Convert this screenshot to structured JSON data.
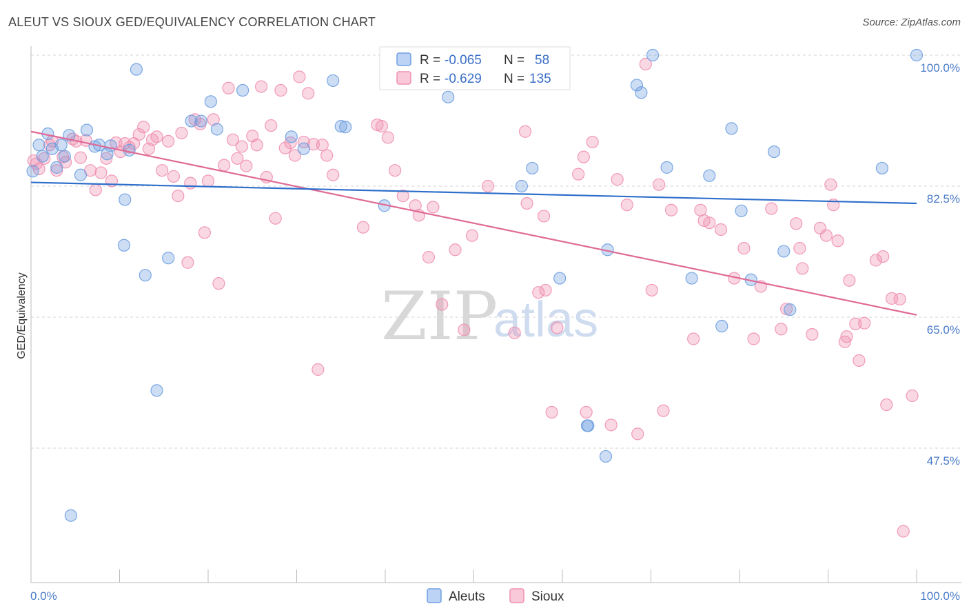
{
  "title": "ALEUT VS SIOUX GED/EQUIVALENCY CORRELATION CHART",
  "source": "Source: ZipAtlas.com",
  "watermark": {
    "zip": "ZIP",
    "atlas": "atlas"
  },
  "colors": {
    "aleut": "#6e9fe0",
    "aleut_line": "#2d6ecb",
    "sioux": "#ef8fb0",
    "sioux_line": "#e06a96",
    "axis_label": "#4a7bc8"
  },
  "legend": {
    "r_label": "R =",
    "n_label": "N =",
    "rows": [
      {
        "r": "-0.065",
        "n": "58"
      },
      {
        "r": "-0.629",
        "n": "135"
      }
    ]
  },
  "chart_data": {
    "type": "scatter",
    "xlabel": "",
    "ylabel": "GED/Equivalency",
    "xlim": [
      0,
      100
    ],
    "ylim": [
      32,
      103
    ],
    "x_tick_labels": [
      "0.0%",
      "100.0%"
    ],
    "y_ticks": [
      47.5,
      65.0,
      82.5,
      100.0
    ],
    "y_tick_labels": [
      "47.5%",
      "65.0%",
      "82.5%",
      "100.0%"
    ],
    "legend_position": "top-center",
    "series": [
      {
        "name": "Aleuts",
        "trend": [
          [
            0,
            83.0
          ],
          [
            100,
            80.2
          ]
        ],
        "points": [
          [
            0.2,
            84.5
          ],
          [
            0.9,
            88
          ],
          [
            1.3,
            86.5
          ],
          [
            1.9,
            89.5
          ],
          [
            2.4,
            87.5
          ],
          [
            2.9,
            85
          ],
          [
            3.4,
            88
          ],
          [
            3.8,
            86.5
          ],
          [
            4.3,
            89.3
          ],
          [
            5.6,
            84
          ],
          [
            6.3,
            90
          ],
          [
            7.2,
            87.8
          ],
          [
            7.7,
            88
          ],
          [
            8.6,
            86.8
          ],
          [
            9,
            87.9
          ],
          [
            10.6,
            80.7
          ],
          [
            10.5,
            74.6
          ],
          [
            11.1,
            87.3
          ],
          [
            11.9,
            98.1
          ],
          [
            12.9,
            70.6
          ],
          [
            14.2,
            55.2
          ],
          [
            15.5,
            72.9
          ],
          [
            18.1,
            91.2
          ],
          [
            19.2,
            91.2
          ],
          [
            20.3,
            93.8
          ],
          [
            21,
            90.1
          ],
          [
            23.9,
            95.3
          ],
          [
            29.4,
            89.1
          ],
          [
            30.8,
            87.5
          ],
          [
            34.1,
            96.6
          ],
          [
            35,
            90.5
          ],
          [
            39.9,
            79.9
          ],
          [
            35.5,
            90.4
          ],
          [
            47.1,
            94.4
          ],
          [
            55.4,
            82.5
          ],
          [
            55.8,
            100
          ],
          [
            56.6,
            84.9
          ],
          [
            59.7,
            70.2
          ],
          [
            62.8,
            50.5
          ],
          [
            62.9,
            50.5
          ],
          [
            64.9,
            46.4
          ],
          [
            65.1,
            74
          ],
          [
            68.4,
            96
          ],
          [
            70.2,
            100
          ],
          [
            68.9,
            95
          ],
          [
            71.8,
            85
          ],
          [
            74.6,
            70.2
          ],
          [
            76.6,
            83.9
          ],
          [
            78,
            63.8
          ],
          [
            79.1,
            90.2
          ],
          [
            80.2,
            79.2
          ],
          [
            81.3,
            70
          ],
          [
            83.9,
            87.1
          ],
          [
            85.7,
            66
          ],
          [
            85,
            73.8
          ],
          [
            96.1,
            84.9
          ],
          [
            100,
            100
          ],
          [
            4.5,
            38.5
          ]
        ]
      },
      {
        "name": "Sioux",
        "trend": [
          [
            0,
            89.8
          ],
          [
            100,
            65.3
          ]
        ],
        "points": [
          [
            0.3,
            85.9
          ],
          [
            0.6,
            85.5
          ],
          [
            0.9,
            84.8
          ],
          [
            1.5,
            86.2
          ],
          [
            2.1,
            88
          ],
          [
            2.4,
            88.5
          ],
          [
            2.9,
            84.6
          ],
          [
            3.6,
            86.4
          ],
          [
            3.9,
            85.7
          ],
          [
            4.7,
            88.8
          ],
          [
            5.1,
            88.5
          ],
          [
            5.6,
            86.3
          ],
          [
            6.2,
            88.6
          ],
          [
            6.7,
            84.6
          ],
          [
            7.3,
            82
          ],
          [
            7.9,
            84.3
          ],
          [
            8.5,
            86.2
          ],
          [
            9.1,
            83.2
          ],
          [
            9.6,
            88.3
          ],
          [
            10.1,
            87.1
          ],
          [
            10.6,
            88.2
          ],
          [
            11.1,
            87.7
          ],
          [
            11.6,
            88.2
          ],
          [
            12.2,
            89.4
          ],
          [
            12.7,
            90.4
          ],
          [
            13.3,
            87.5
          ],
          [
            13.7,
            88.7
          ],
          [
            14.2,
            89.1
          ],
          [
            14.8,
            84.6
          ],
          [
            15.5,
            88.5
          ],
          [
            16.1,
            83.8
          ],
          [
            16.6,
            81.2
          ],
          [
            17,
            89.6
          ],
          [
            17.7,
            72.3
          ],
          [
            18,
            82.9
          ],
          [
            18.5,
            91.4
          ],
          [
            19.1,
            90.8
          ],
          [
            19.6,
            76.3
          ],
          [
            20,
            83.2
          ],
          [
            20.6,
            91.4
          ],
          [
            21.2,
            69.5
          ],
          [
            21.8,
            85.3
          ],
          [
            22.3,
            95.6
          ],
          [
            22.8,
            88.7
          ],
          [
            23.3,
            86.2
          ],
          [
            23.8,
            87.8
          ],
          [
            24.3,
            85.2
          ],
          [
            25,
            89.2
          ],
          [
            25.5,
            88
          ],
          [
            26,
            95.8
          ],
          [
            26.6,
            83.7
          ],
          [
            27.1,
            90.6
          ],
          [
            27.6,
            78.2
          ],
          [
            28.2,
            95.3
          ],
          [
            28.7,
            87.6
          ],
          [
            29.3,
            88.3
          ],
          [
            29.8,
            86.6
          ],
          [
            30.3,
            97.1
          ],
          [
            30.8,
            88.4
          ],
          [
            31.3,
            94.9
          ],
          [
            31.9,
            88.1
          ],
          [
            32.4,
            58
          ],
          [
            32.9,
            88
          ],
          [
            33.4,
            86.6
          ],
          [
            34.1,
            84
          ],
          [
            37.5,
            77
          ],
          [
            39.1,
            90.7
          ],
          [
            39.6,
            90.5
          ],
          [
            40.3,
            89
          ],
          [
            41.1,
            84.6
          ],
          [
            42,
            81.2
          ],
          [
            43.4,
            79.9
          ],
          [
            43.8,
            78.6
          ],
          [
            44.9,
            73
          ],
          [
            45.4,
            79.7
          ],
          [
            46.4,
            66.7
          ],
          [
            47.9,
            74
          ],
          [
            48.9,
            63.3
          ],
          [
            49.8,
            75.9
          ],
          [
            51.6,
            82.5
          ],
          [
            54.6,
            62.9
          ],
          [
            56,
            80.2
          ],
          [
            57.3,
            68.3
          ],
          [
            57.9,
            78.5
          ],
          [
            58.1,
            68.6
          ],
          [
            59.4,
            63.6
          ],
          [
            61.8,
            84.1
          ],
          [
            62.4,
            86.4
          ],
          [
            63.4,
            88.4
          ],
          [
            65.5,
            50.6
          ],
          [
            66.2,
            83.4
          ],
          [
            67.3,
            80
          ],
          [
            68.5,
            49.4
          ],
          [
            69.4,
            98.8
          ],
          [
            70.1,
            68.6
          ],
          [
            70.9,
            82.7
          ],
          [
            72.3,
            79.3
          ],
          [
            74.8,
            62.1
          ],
          [
            75.6,
            79.3
          ],
          [
            76,
            77.9
          ],
          [
            76.6,
            77.6
          ],
          [
            77.9,
            76.7
          ],
          [
            79.4,
            70.2
          ],
          [
            80.5,
            74.2
          ],
          [
            81.6,
            62.1
          ],
          [
            82.4,
            69.1
          ],
          [
            83.6,
            79.5
          ],
          [
            84.7,
            63.4
          ],
          [
            85.3,
            66.1
          ],
          [
            86.4,
            77.5
          ],
          [
            86.8,
            74.2
          ],
          [
            87.1,
            71.5
          ],
          [
            88.2,
            62.7
          ],
          [
            89.1,
            76.9
          ],
          [
            89.8,
            75.9
          ],
          [
            90.3,
            82.7
          ],
          [
            90.6,
            80
          ],
          [
            91.1,
            75.2
          ],
          [
            91.9,
            61.7
          ],
          [
            92.1,
            62.4
          ],
          [
            92.4,
            69.9
          ],
          [
            93.1,
            64.1
          ],
          [
            93.5,
            59.2
          ],
          [
            94.1,
            64.2
          ],
          [
            95.4,
            72.6
          ],
          [
            96.2,
            73.1
          ],
          [
            96.6,
            53.3
          ],
          [
            97.2,
            67.5
          ],
          [
            98.1,
            67.4
          ],
          [
            98.5,
            36.4
          ],
          [
            99.5,
            54.5
          ],
          [
            55.8,
            89.8
          ],
          [
            58.8,
            52.3
          ],
          [
            62.7,
            52.3
          ],
          [
            71.4,
            52.5
          ]
        ]
      }
    ]
  }
}
